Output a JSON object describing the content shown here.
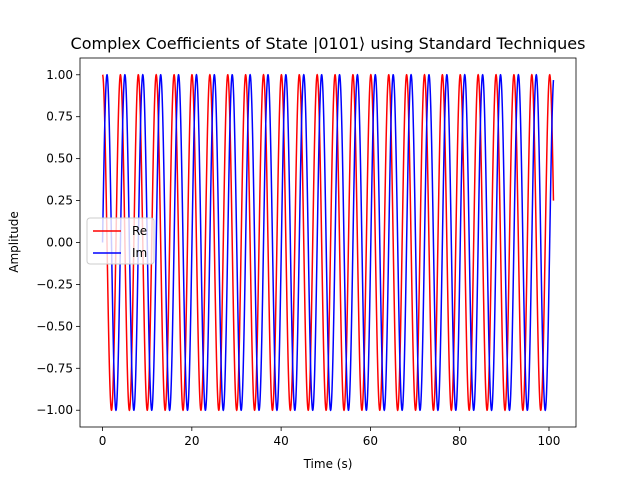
{
  "chart_data": {
    "type": "line",
    "title": "Complex Coefficients of State |0101⟩ using Standard Techniques",
    "xlabel": "Time (s)",
    "ylabel": "Amplitude",
    "xlim": [
      -5.05,
      106.05
    ],
    "ylim": [
      -1.1,
      1.1
    ],
    "x_ticks": [
      0,
      20,
      40,
      60,
      80,
      100
    ],
    "x_tick_labels": [
      "0",
      "20",
      "40",
      "60",
      "80",
      "100"
    ],
    "y_ticks": [
      -1.0,
      -0.75,
      -0.5,
      -0.25,
      0.0,
      0.25,
      0.5,
      0.75,
      1.0
    ],
    "y_tick_labels": [
      "−1.00",
      "−0.75",
      "−0.50",
      "−0.25",
      "0.00",
      "0.25",
      "0.50",
      "0.75",
      "1.00"
    ],
    "grid": false,
    "legend_position": "center-left",
    "x_range": [
      0,
      101
    ],
    "angular_frequency": 1.5683,
    "series": [
      {
        "name": "Re",
        "function": "cos",
        "color": "#ff0000"
      },
      {
        "name": "Im",
        "function": "sin",
        "color": "#0000ff"
      }
    ]
  }
}
